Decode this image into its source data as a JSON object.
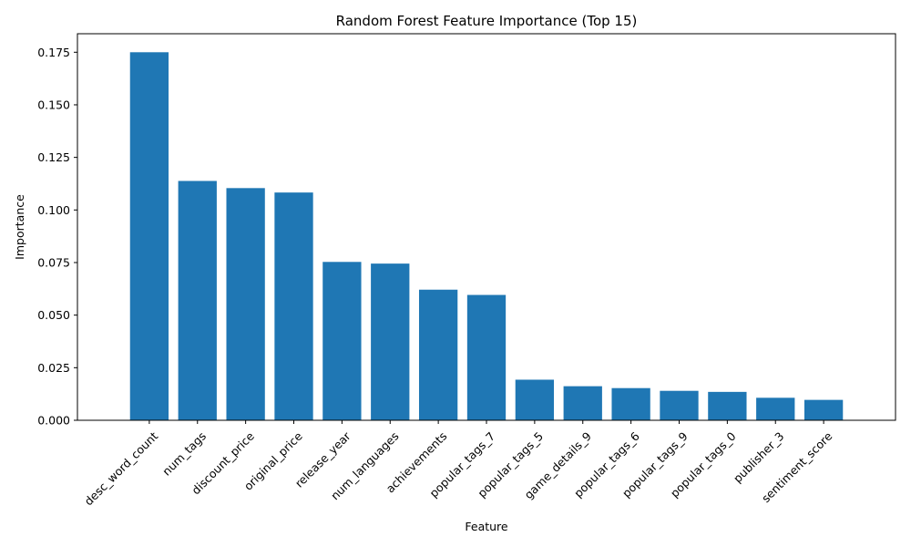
{
  "chart_data": {
    "type": "bar",
    "title": "Random Forest Feature Importance (Top 15)",
    "xlabel": "Feature",
    "ylabel": "Importance",
    "categories": [
      "desc_word_count",
      "num_tags",
      "discount_price",
      "original_price",
      "release_year",
      "num_languages",
      "achievements",
      "popular_tags_7",
      "popular_tags_5",
      "game_details_9",
      "popular_tags_6",
      "popular_tags_9",
      "popular_tags_0",
      "publisher_3",
      "sentiment_score"
    ],
    "values": [
      0.175,
      0.1138,
      0.1104,
      0.1083,
      0.0753,
      0.0745,
      0.0621,
      0.0596,
      0.0193,
      0.0162,
      0.0153,
      0.014,
      0.0135,
      0.0107,
      0.0097
    ],
    "ylim": [
      0,
      0.1838
    ],
    "yticks": [
      "0.000",
      "0.025",
      "0.050",
      "0.075",
      "0.100",
      "0.125",
      "0.150",
      "0.175"
    ],
    "grid": false,
    "bar_color": "#1f77b4"
  }
}
